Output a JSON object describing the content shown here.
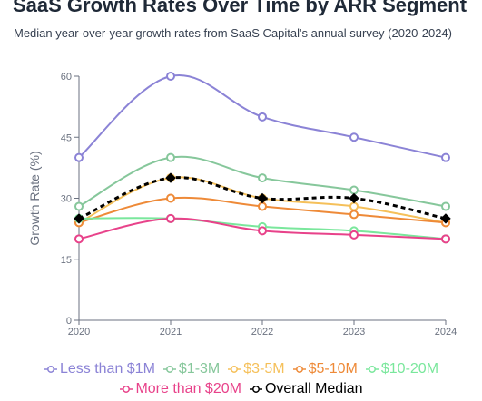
{
  "title": "SaaS Growth Rates Over Time by ARR Segment",
  "subtitle": "Median year-over-year growth rates from SaaS Capital's annual survey (2020-2024)",
  "chart_data": {
    "type": "line",
    "x": [
      "2020",
      "2021",
      "2022",
      "2023",
      "2024"
    ],
    "ylabel": "Growth Rate (%)",
    "xlabel": "",
    "ylim": [
      0,
      60
    ],
    "yticks": [
      "0",
      "15",
      "30",
      "45",
      "60"
    ],
    "grid": false,
    "legend_position": "bottom",
    "series": [
      {
        "name": "Less than $1M",
        "values": [
          40,
          60,
          50,
          45,
          40
        ],
        "color": "#8b83d6",
        "marker": "circle",
        "dashed": false
      },
      {
        "name": "$1-3M",
        "values": [
          28,
          40,
          35,
          32,
          28
        ],
        "color": "#86c79b",
        "marker": "circle",
        "dashed": false
      },
      {
        "name": "$3-5M",
        "values": [
          24,
          35,
          30,
          28,
          24
        ],
        "color": "#f5c05a",
        "marker": "circle",
        "dashed": false
      },
      {
        "name": "$5-10M",
        "values": [
          24,
          30,
          28,
          26,
          24
        ],
        "color": "#ee8a38",
        "marker": "circle",
        "dashed": false
      },
      {
        "name": "$10-20M",
        "values": [
          25,
          25,
          23,
          22,
          20
        ],
        "color": "#7ae79c",
        "marker": "circle",
        "dashed": false
      },
      {
        "name": "More than $20M",
        "values": [
          20,
          25,
          22,
          21,
          20
        ],
        "color": "#e8428a",
        "marker": "circle",
        "dashed": false
      },
      {
        "name": "Overall Median",
        "values": [
          25,
          35,
          30,
          30,
          25
        ],
        "color": "#000000",
        "marker": "diamond",
        "dashed": true
      }
    ]
  }
}
